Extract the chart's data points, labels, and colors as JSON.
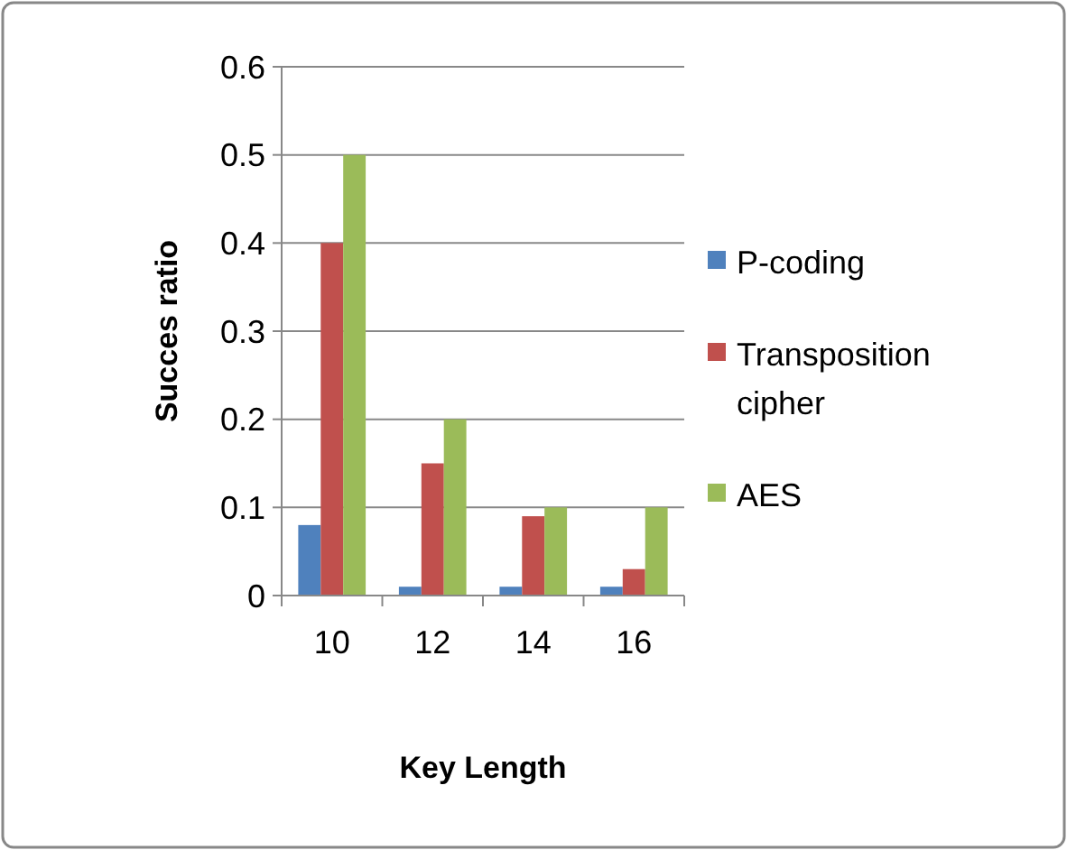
{
  "chart_data": {
    "type": "bar",
    "xlabel": "Key Length",
    "ylabel": "Succes ratio",
    "categories": [
      "10",
      "12",
      "14",
      "16"
    ],
    "series": [
      {
        "name": "P-coding",
        "color": "#4f81bd",
        "values": [
          0.08,
          0.01,
          0.01,
          0.01
        ]
      },
      {
        "name": "Transposition cipher",
        "color": "#c0504d",
        "values": [
          0.4,
          0.15,
          0.09,
          0.03
        ]
      },
      {
        "name": "AES",
        "color": "#9bbb59",
        "values": [
          0.5,
          0.2,
          0.1,
          0.1
        ]
      }
    ],
    "ylim": [
      0,
      0.6
    ],
    "yticks": [
      0,
      0.1,
      0.2,
      0.3,
      0.4,
      0.5,
      0.6
    ],
    "grid": "y",
    "legend": "right"
  }
}
